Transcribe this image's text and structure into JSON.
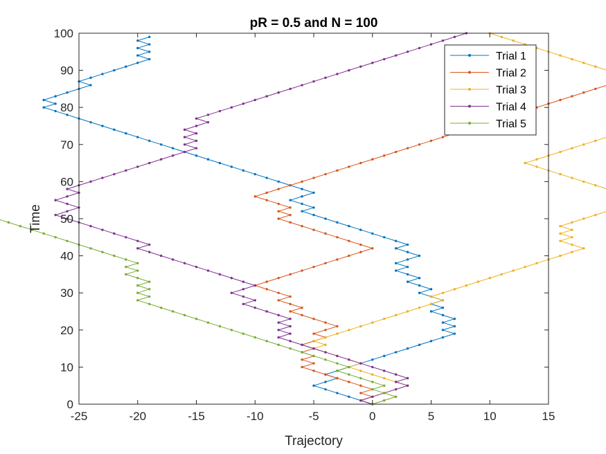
{
  "chart_data": {
    "type": "line",
    "title": "pR = 0.5 and N = 100",
    "xlabel": "Trajectory",
    "ylabel": "Time",
    "xlim": [
      -25,
      15
    ],
    "ylim": [
      0,
      100
    ],
    "xticks": [
      -25,
      -20,
      -15,
      -10,
      -5,
      0,
      5,
      10,
      15
    ],
    "yticks": [
      0,
      10,
      20,
      30,
      40,
      50,
      60,
      70,
      80,
      90,
      100
    ],
    "grid": false,
    "legend_position": "top-right",
    "series": [
      {
        "name": "Trial 1",
        "color": "#0072BD",
        "steps": [
          -1,
          -1,
          -1,
          -1,
          -1,
          1,
          1,
          -1,
          1,
          1,
          1,
          1,
          1,
          1,
          1,
          1,
          1,
          1,
          1,
          -1,
          1,
          -1,
          1,
          -1,
          -1,
          1,
          -1,
          1,
          -1,
          -1,
          1,
          -1,
          -1,
          1,
          -1,
          -1,
          1,
          -1,
          1,
          1,
          -1,
          -1,
          1,
          -1,
          -1,
          -1,
          -1,
          -1,
          -1,
          -1,
          -1,
          -1,
          1,
          -1,
          -1,
          1,
          1,
          -1,
          -1,
          -1,
          -1,
          -1,
          -1,
          -1,
          -1,
          -1,
          -1,
          -1,
          -1,
          -1,
          -1,
          -1,
          -1,
          -1,
          -1,
          -1,
          -1,
          -1,
          -1,
          -1,
          1,
          -1,
          1,
          1,
          1,
          1,
          -1,
          1,
          1,
          1,
          1,
          1,
          1,
          -1,
          1,
          -1,
          1,
          -1,
          1
        ]
      },
      {
        "name": "Trial 2",
        "color": "#D95319",
        "steps": [
          -1,
          1,
          -1,
          1,
          -1,
          -1,
          -1,
          -1,
          -1,
          -1,
          1,
          -1,
          1,
          -1,
          1,
          -1,
          1,
          1,
          -1,
          1,
          1,
          -1,
          -1,
          -1,
          -1,
          1,
          -1,
          -1,
          1,
          -1,
          -1,
          -1,
          1,
          1,
          1,
          1,
          1,
          1,
          1,
          1,
          1,
          1,
          -1,
          -1,
          -1,
          -1,
          -1,
          -1,
          -1,
          -1,
          1,
          -1,
          1,
          -1,
          -1,
          -1,
          1,
          1,
          1,
          1,
          1,
          1,
          1,
          1,
          1,
          1,
          1,
          1,
          1,
          1,
          1,
          1,
          1,
          1,
          1,
          1,
          1,
          1,
          1,
          1,
          1,
          1,
          1,
          1,
          1,
          1,
          1,
          1,
          1,
          1,
          1,
          1,
          1,
          1,
          1,
          1,
          1,
          1,
          1,
          1
        ]
      },
      {
        "name": "Trial 3",
        "color": "#EDB120",
        "steps": [
          1,
          1,
          -1,
          1,
          1,
          -1,
          -1,
          -1,
          -1,
          -1,
          1,
          -1,
          -1,
          -1,
          -1,
          1,
          -1,
          1,
          1,
          1,
          1,
          1,
          1,
          1,
          1,
          1,
          1,
          1,
          -1,
          1,
          1,
          1,
          1,
          1,
          1,
          1,
          1,
          1,
          1,
          1,
          1,
          1,
          -1,
          -1,
          1,
          -1,
          1,
          -1,
          1,
          1,
          1,
          1,
          1,
          1,
          1,
          -1,
          -1,
          -1,
          -1,
          -1,
          -1,
          -1,
          -1,
          -1,
          -1,
          1,
          1,
          1,
          1,
          1,
          1,
          1,
          1,
          1,
          1,
          1,
          1,
          1,
          1,
          1,
          1,
          -1,
          -1,
          -1,
          -1,
          -1,
          -1,
          -1,
          -1,
          -1,
          -1,
          -1,
          -1,
          -1,
          -1,
          -1,
          -1,
          -1,
          -1,
          -1
        ]
      },
      {
        "name": "Trial 4",
        "color": "#7E2F8E",
        "steps": [
          -1,
          1,
          1,
          1,
          1,
          -1,
          1,
          -1,
          -1,
          -1,
          -1,
          -1,
          -1,
          -1,
          -1,
          -1,
          -1,
          -1,
          1,
          -1,
          1,
          -1,
          1,
          -1,
          -1,
          -1,
          -1,
          1,
          -1,
          -1,
          1,
          1,
          -1,
          -1,
          -1,
          -1,
          -1,
          -1,
          -1,
          -1,
          -1,
          -1,
          1,
          -1,
          -1,
          -1,
          -1,
          -1,
          -1,
          -1,
          -1,
          1,
          1,
          -1,
          -1,
          1,
          1,
          -1,
          1,
          1,
          1,
          1,
          1,
          1,
          1,
          1,
          1,
          1,
          1,
          -1,
          1,
          -1,
          1,
          -1,
          1,
          1,
          -1,
          1,
          1,
          1,
          1,
          1,
          1,
          1,
          1,
          1,
          1,
          1,
          1,
          1,
          1,
          1,
          1,
          1,
          1,
          1,
          1,
          1,
          1,
          1
        ]
      },
      {
        "name": "Trial 5",
        "color": "#77AC30",
        "steps": [
          1,
          1,
          -1,
          -1,
          1,
          -1,
          -1,
          -1,
          -1,
          1,
          -1,
          -1,
          -1,
          -1,
          -1,
          -1,
          -1,
          -1,
          -1,
          -1,
          -1,
          -1,
          -1,
          -1,
          -1,
          -1,
          -1,
          -1,
          1,
          -1,
          1,
          -1,
          1,
          -1,
          -1,
          1,
          -1,
          1,
          -1,
          -1,
          -1,
          -1,
          -1,
          -1,
          -1,
          -1,
          -1,
          -1,
          -1,
          -1,
          -1,
          -1,
          -1,
          -1,
          -1,
          -1,
          1,
          1,
          1,
          1,
          -1,
          1,
          -1,
          1,
          -1,
          -1,
          1,
          -1,
          1,
          -1,
          -1,
          -1,
          1,
          1,
          1,
          1,
          -1,
          1,
          -1,
          1,
          -1,
          1,
          -1,
          1,
          -1,
          1,
          1,
          -1,
          1,
          -1,
          1,
          1,
          -1,
          -1,
          -1,
          -1,
          1,
          -1,
          1
        ]
      }
    ]
  }
}
